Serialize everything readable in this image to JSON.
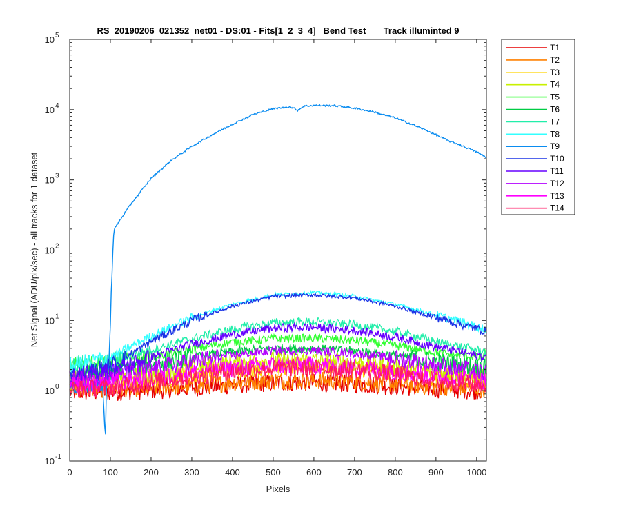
{
  "chart_data": {
    "type": "line",
    "title": "RS_20190206_021352_net01 - DS:01 - Fits[1  2  3  4]   Bend Test       Track illuminted 9",
    "xlabel": "Pixels",
    "ylabel": "Net Signal (ADU/pix/sec) - all tracks for 1 dataset",
    "xlim": [
      0,
      1024
    ],
    "ylim": [
      0.1,
      100000
    ],
    "yscale": "log",
    "grid": false,
    "legend_position": "outside-right",
    "x_ticks": [
      "0",
      "100",
      "200",
      "300",
      "400",
      "500",
      "600",
      "700",
      "800",
      "900",
      "1000"
    ],
    "y_ticks": [
      {
        "base": "10",
        "exp": "-1"
      },
      {
        "base": "10",
        "exp": "0"
      },
      {
        "base": "10",
        "exp": "1"
      },
      {
        "base": "10",
        "exp": "2"
      },
      {
        "base": "10",
        "exp": "3"
      },
      {
        "base": "10",
        "exp": "4"
      },
      {
        "base": "10",
        "exp": "5"
      }
    ],
    "series": [
      {
        "name": "T1",
        "color": "#e60000",
        "x": [
          0,
          100,
          200,
          300,
          400,
          500,
          600,
          700,
          800,
          900,
          1024
        ],
        "y": [
          0.95,
          0.95,
          1.0,
          1.1,
          1.2,
          1.3,
          1.3,
          1.25,
          1.15,
          1.05,
          1.0
        ]
      },
      {
        "name": "T2",
        "color": "#ff8000",
        "x": [
          0,
          100,
          200,
          300,
          400,
          500,
          600,
          700,
          800,
          900,
          1024
        ],
        "y": [
          1.05,
          1.05,
          1.1,
          1.2,
          1.3,
          1.4,
          1.4,
          1.35,
          1.25,
          1.15,
          1.05
        ]
      },
      {
        "name": "T3",
        "color": "#ffd400",
        "x": [
          0,
          100,
          200,
          300,
          400,
          500,
          600,
          700,
          800,
          900,
          1024
        ],
        "y": [
          1.3,
          1.3,
          1.45,
          1.7,
          2.0,
          2.2,
          2.2,
          2.1,
          1.85,
          1.6,
          1.4
        ]
      },
      {
        "name": "T4",
        "color": "#c8f000",
        "x": [
          0,
          100,
          200,
          300,
          400,
          500,
          600,
          700,
          800,
          900,
          1024
        ],
        "y": [
          1.5,
          1.5,
          1.7,
          2.1,
          2.5,
          2.7,
          2.7,
          2.5,
          2.2,
          1.9,
          1.6
        ]
      },
      {
        "name": "T5",
        "color": "#33ff33",
        "x": [
          0,
          100,
          200,
          300,
          400,
          500,
          600,
          700,
          800,
          900,
          1024
        ],
        "y": [
          2.2,
          2.4,
          3.0,
          3.9,
          4.9,
          5.5,
          5.6,
          5.2,
          4.4,
          3.5,
          2.9
        ]
      },
      {
        "name": "T6",
        "color": "#00cc44",
        "x": [
          0,
          100,
          200,
          300,
          400,
          500,
          600,
          700,
          800,
          900,
          1024
        ],
        "y": [
          1.8,
          1.9,
          2.4,
          3.0,
          3.6,
          4.0,
          4.0,
          3.7,
          3.2,
          2.6,
          2.1
        ]
      },
      {
        "name": "T7",
        "color": "#22eeaa",
        "x": [
          0,
          100,
          200,
          300,
          400,
          500,
          600,
          700,
          800,
          900,
          1024
        ],
        "y": [
          2.3,
          2.6,
          3.8,
          5.5,
          7.5,
          9.3,
          9.6,
          8.7,
          7.0,
          5.0,
          3.6
        ]
      },
      {
        "name": "T8",
        "color": "#33ffff",
        "x": [
          0,
          100,
          200,
          300,
          400,
          500,
          600,
          700,
          800,
          900,
          1024
        ],
        "y": [
          2.2,
          3.0,
          6.0,
          11,
          17,
          23,
          25,
          22,
          17,
          12,
          7.5
        ]
      },
      {
        "name": "T9",
        "color": "#0a8cf0",
        "x": [
          0,
          80,
          88,
          90,
          95,
          100,
          105,
          110,
          120,
          150,
          200,
          250,
          300,
          350,
          400,
          450,
          500,
          540,
          550,
          560,
          565,
          575,
          600,
          650,
          700,
          750,
          800,
          850,
          900,
          930,
          950,
          1000,
          1024
        ],
        "y": [
          1.1,
          1.2,
          0.24,
          1.0,
          2.0,
          10,
          80,
          200,
          250,
          450,
          1050,
          1900,
          3000,
          4400,
          6200,
          8500,
          10300,
          11000,
          10500,
          9800,
          10200,
          11200,
          11500,
          11400,
          10500,
          9200,
          7600,
          5900,
          4400,
          3600,
          3300,
          2500,
          2100
        ]
      },
      {
        "name": "T10",
        "color": "#1a33e6",
        "x": [
          0,
          100,
          200,
          300,
          400,
          500,
          600,
          700,
          800,
          900,
          1024
        ],
        "y": [
          1.6,
          2.2,
          5.0,
          10,
          16,
          22,
          23,
          21,
          16,
          11,
          7.0
        ]
      },
      {
        "name": "T11",
        "color": "#6600ff",
        "x": [
          0,
          100,
          200,
          300,
          400,
          500,
          600,
          700,
          800,
          900,
          1024
        ],
        "y": [
          1.6,
          1.9,
          3.0,
          4.6,
          6.3,
          7.8,
          8.0,
          7.2,
          5.8,
          4.2,
          3.0
        ]
      },
      {
        "name": "T12",
        "color": "#b300ff",
        "x": [
          0,
          100,
          200,
          300,
          400,
          500,
          600,
          700,
          800,
          900,
          1024
        ],
        "y": [
          1.4,
          1.5,
          2.0,
          2.6,
          3.2,
          3.7,
          3.7,
          3.4,
          2.9,
          2.3,
          1.8
        ]
      },
      {
        "name": "T13",
        "color": "#ff00ff",
        "x": [
          0,
          100,
          200,
          300,
          400,
          500,
          600,
          700,
          800,
          900,
          1024
        ],
        "y": [
          1.2,
          1.3,
          1.5,
          1.8,
          2.1,
          2.3,
          2.3,
          2.2,
          1.9,
          1.6,
          1.4
        ]
      },
      {
        "name": "T14",
        "color": "#ff1a66",
        "x": [
          0,
          100,
          200,
          300,
          400,
          500,
          600,
          700,
          800,
          900,
          1024
        ],
        "y": [
          1.05,
          1.1,
          1.3,
          1.6,
          1.9,
          2.1,
          2.1,
          2.0,
          1.7,
          1.4,
          1.2
        ]
      }
    ]
  }
}
